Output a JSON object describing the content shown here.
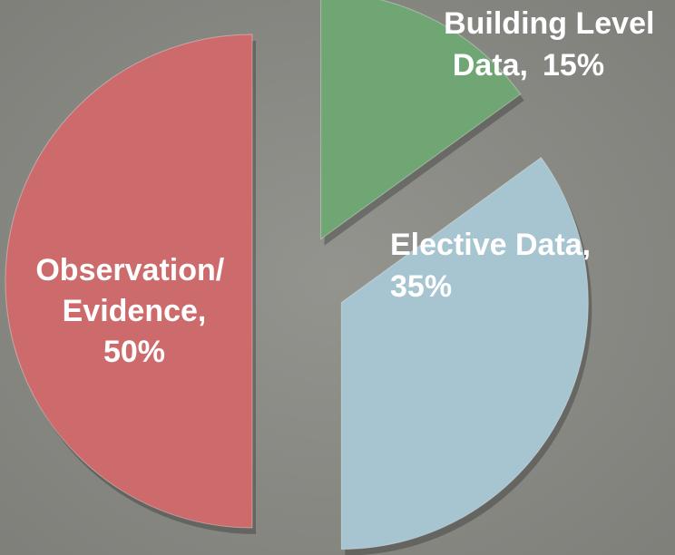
{
  "chart_data": {
    "type": "pie",
    "categories": [
      "Building Level Data,",
      "Elective Data,",
      "Observation/ Evidence,"
    ],
    "values": [
      15,
      35,
      50
    ],
    "value_labels": [
      "15%",
      "35%",
      "50%"
    ],
    "colors": [
      "#6fa673",
      "#a6c5d1",
      "#cd6a6b"
    ]
  }
}
